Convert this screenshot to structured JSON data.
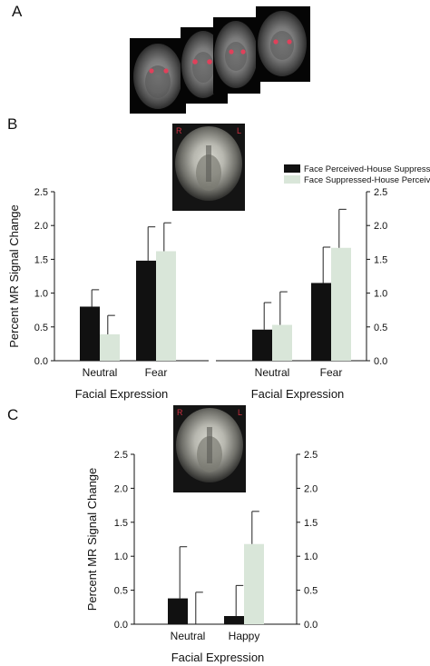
{
  "panels": {
    "a": "A",
    "b": "B",
    "c": "C"
  },
  "brain_labels": {
    "right": "R",
    "left": "L"
  },
  "colors": {
    "face_perceived": "#111111",
    "face_suppressed": "#d9e6d9",
    "axis": "#111111",
    "highlight": "#e0405a"
  },
  "chart_data": [
    {
      "type": "bar",
      "panel": "B",
      "subplot": "left",
      "title": "",
      "xlabel": "Facial Expression",
      "ylabel": "Percent MR Signal Change",
      "categories": [
        "Neutral",
        "Fear"
      ],
      "ylim": [
        0,
        2.5
      ],
      "yticks": [
        "0.0",
        "0.5",
        "1.0",
        "1.5",
        "2.0",
        "2.5"
      ],
      "legend_position": "top-right",
      "series": [
        {
          "name": "Face Perceived-House Suppressed",
          "values": [
            0.8,
            1.48
          ],
          "errors": [
            0.25,
            0.5
          ]
        },
        {
          "name": "Face Suppressed-House Perceived",
          "values": [
            0.39,
            1.62
          ],
          "errors": [
            0.28,
            0.42
          ]
        }
      ]
    },
    {
      "type": "bar",
      "panel": "B",
      "subplot": "right",
      "xlabel": "Facial Expression",
      "ylabel": "",
      "categories": [
        "Neutral",
        "Fear"
      ],
      "ylim": [
        0,
        2.5
      ],
      "yticks": [
        "0.0",
        "0.5",
        "1.0",
        "1.5",
        "2.0",
        "2.5"
      ],
      "series": [
        {
          "values": [
            0.46,
            1.15
          ],
          "errors": [
            0.4,
            0.53
          ]
        },
        {
          "values": [
            0.53,
            1.67
          ],
          "errors": [
            0.49,
            0.57
          ]
        }
      ]
    },
    {
      "type": "bar",
      "panel": "C",
      "xlabel": "Facial Expression",
      "ylabel": "Percent MR Signal Change",
      "categories": [
        "Neutral",
        "Happy"
      ],
      "ylim": [
        0,
        2.5
      ],
      "yticks": [
        "0.0",
        "0.5",
        "1.0",
        "1.5",
        "2.0",
        "2.5"
      ],
      "yticks_right": [
        "0.0",
        "0.5",
        "1.0",
        "1.5",
        "2.0",
        "2.5"
      ],
      "series": [
        {
          "values": [
            0.38,
            0.12
          ],
          "errors": [
            0.76,
            0.45
          ]
        },
        {
          "values": [
            0.0,
            1.18
          ],
          "errors": [
            0.47,
            0.48
          ]
        }
      ]
    }
  ]
}
